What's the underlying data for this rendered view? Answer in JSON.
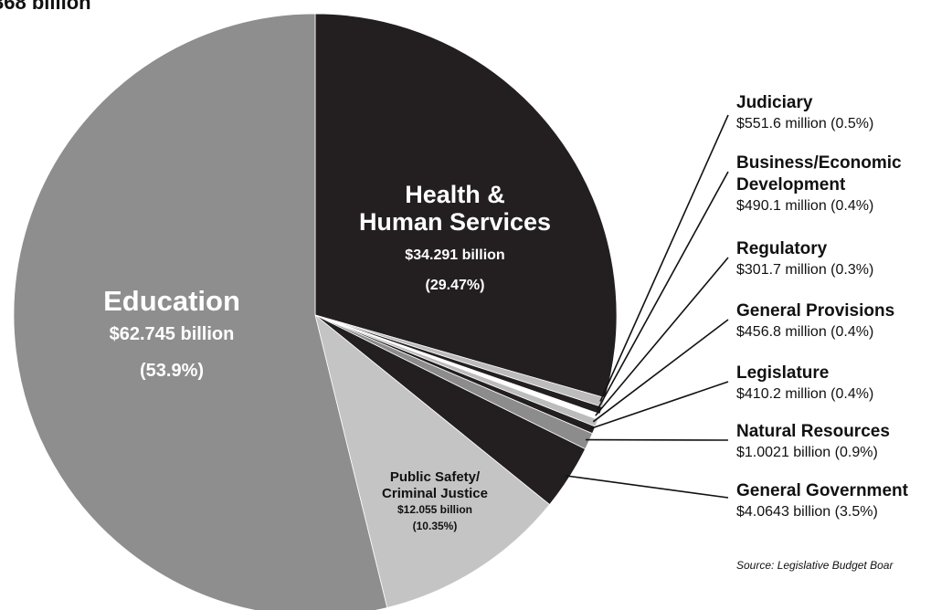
{
  "chart_data": {
    "type": "pie",
    "title": "368 billion",
    "source": "Source: Legislative Budget Boar",
    "slices": [
      {
        "name": "Health & Human Services",
        "label_lines": [
          "Health &",
          "Human Services"
        ],
        "value_text": "$34.291 billion",
        "pct_text": "(29.47%)",
        "percent": 29.47,
        "color": "#231f20"
      },
      {
        "name": "Judiciary",
        "value_text": "$551.6 million (0.5%)",
        "percent": 0.5,
        "color": "#bcbcbc"
      },
      {
        "name": "Business/Economic Development",
        "label_lines": [
          "Business/Economic",
          "Development"
        ],
        "value_text": "$490.1 million (0.4%)",
        "percent": 0.4,
        "color": "#231f20"
      },
      {
        "name": "Regulatory",
        "value_text": "$301.7 million (0.3%)",
        "percent": 0.3,
        "color": "#ffffff"
      },
      {
        "name": "General Provisions",
        "value_text": "$456.8 million (0.4%)",
        "percent": 0.4,
        "color": "#bcbcbc"
      },
      {
        "name": "Legislature",
        "value_text": "$410.2 million (0.4%)",
        "percent": 0.4,
        "color": "#231f20"
      },
      {
        "name": "Natural Resources",
        "value_text": "$1.0021 billion (0.9%)",
        "percent": 0.9,
        "color": "#8c8c8c"
      },
      {
        "name": "General Government",
        "value_text": "$4.0643 billion (3.5%)",
        "percent": 3.5,
        "color": "#231f20"
      },
      {
        "name": "Public Safety/ Criminal Justice",
        "label_lines": [
          "Public Safety/",
          "Criminal Justice"
        ],
        "value_text": "$12.055 billion",
        "pct_text": "(10.35%)",
        "percent": 10.35,
        "color": "#c4c4c4"
      },
      {
        "name": "Education",
        "label_lines": [
          "Education"
        ],
        "value_text": "$62.745 billion",
        "pct_text": "(53.9%)",
        "percent": 53.9,
        "color": "#8e8e8e"
      }
    ]
  }
}
